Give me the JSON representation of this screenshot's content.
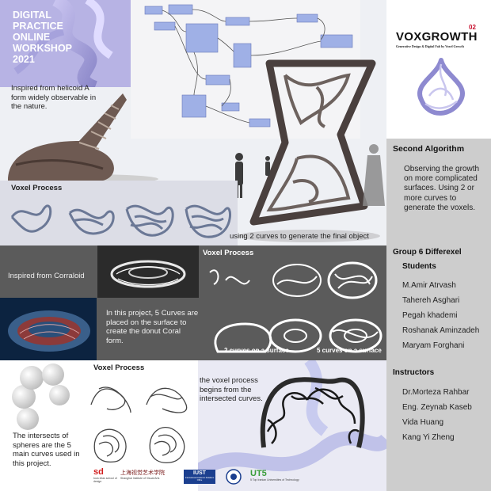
{
  "header": {
    "title_lines": [
      "DIGITAL",
      "PRACTICE",
      "ONLINE",
      "WORKSHOP",
      "2021"
    ],
    "badge_number": "02",
    "brand": "VOXGROWTH",
    "brand_subtitle": "Generative Design & Digital Fab by Voxel Growth"
  },
  "intro": {
    "inspired": "Inspired from helicoid A form widely observable in the nature."
  },
  "voxel_top": {
    "title": "Voxel Process",
    "caption": "using 2 curves to generate the final object"
  },
  "coral": {
    "inspired": "Inspired from Corraloid",
    "voxel_title": "Voxel Process",
    "description": "In this project, 5 Curves are placed on the surface to create the donut Coral form.",
    "label_two": "2 curves on a surface",
    "label_five": "5 curves on a  surface"
  },
  "bottom": {
    "voxel_title": "Voxel Process",
    "spheres_text": "The intersects of spheres are the 5 main curves used in this project.",
    "intersect_text": "the voxel process begins from the intersected curves."
  },
  "logos": {
    "sd_main": "sd",
    "sd_sub": "tova elias school of design",
    "shanghai": "上海视觉艺术学院",
    "shanghai_sub": "Shanghai Institute of Visual Arts",
    "iust": "IUST",
    "iust_sub": "International Academic Relations Office",
    "ut5": "UT5",
    "ut5_sub": "5 Top Iranian Universities of Technology"
  },
  "sidebar": {
    "second_title": "Second Algorithm",
    "second_text": "Observing the growth on more complicated surfaces. Using 2 or more curves to generate the voxels.",
    "group_title": "Group 6 Differexel",
    "students_title": "Students",
    "students": [
      "M.Amir Atrvash",
      "Tahereh Asghari",
      "Pegah khademi",
      "Roshanak Aminzadeh",
      "Maryam Forghani"
    ],
    "instructors_title": "Instructors",
    "instructors": [
      "Dr.Morteza Rahbar",
      "Eng. Zeynab Kaseb",
      "Vida Huang",
      "Kang Yi Zheng"
    ]
  },
  "colors": {
    "sidebar_bg": "#cdcdcd",
    "grey_band": "#5b5b5b",
    "title_white": "#ffffff",
    "badge_red": "#c8102e",
    "node_blue": "#9fb0e6"
  },
  "icons": [
    "helix-render",
    "shell-render",
    "node-graph",
    "sculpture-render",
    "coral-photo",
    "donut-render",
    "sphere-chain",
    "logo-sd",
    "logo-shanghai",
    "logo-iust",
    "logo-emblem",
    "logo-ut5"
  ]
}
